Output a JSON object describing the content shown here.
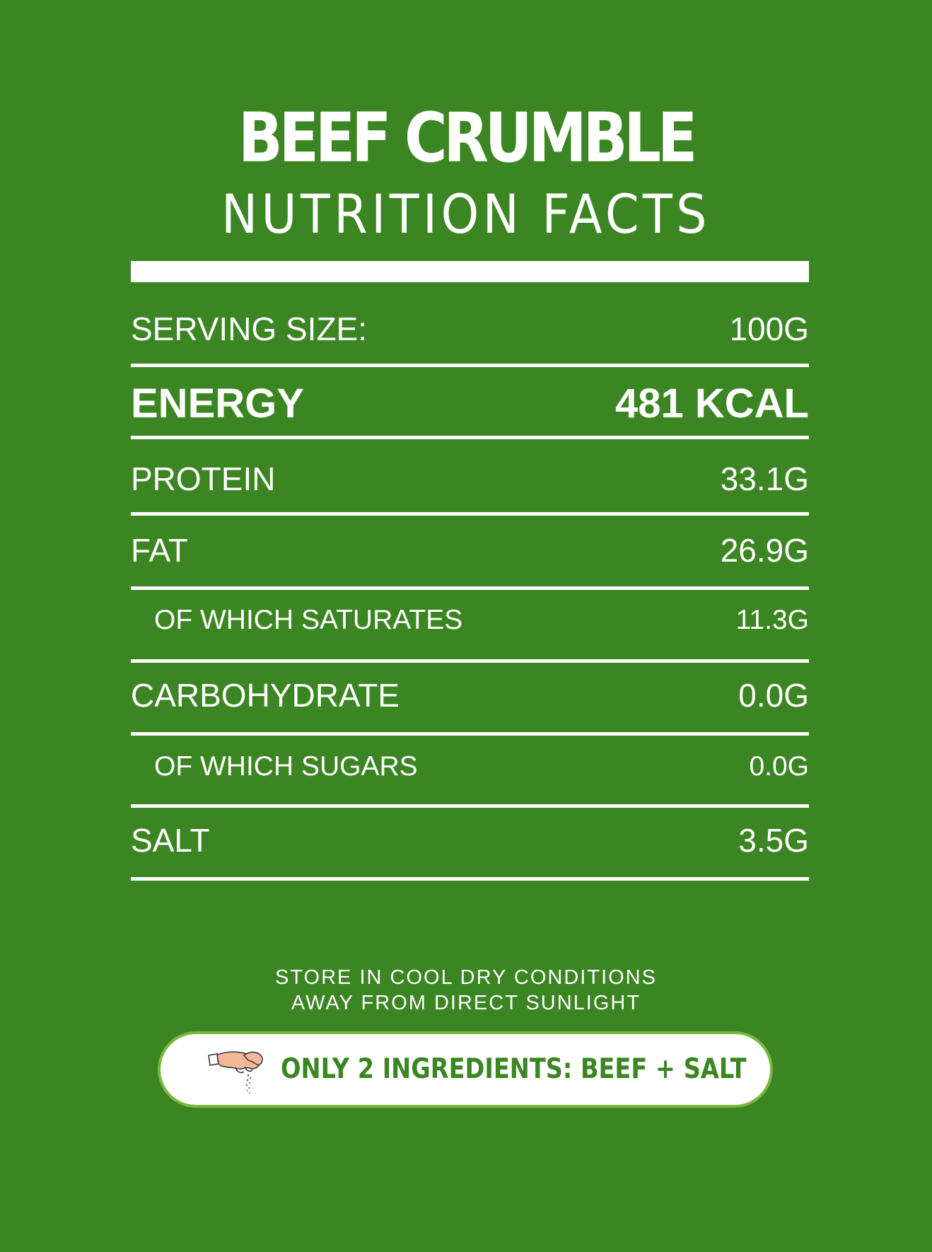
{
  "header": {
    "title": "BEEF CRUMBLE",
    "subtitle": "NUTRITION FACTS"
  },
  "nutrition": {
    "serving": {
      "label": "SERVING SIZE:",
      "value": "100G"
    },
    "energy": {
      "label": "ENERGY",
      "value": "481 KCAL"
    },
    "protein": {
      "label": "PROTEIN",
      "value": "33.1G"
    },
    "fat": {
      "label": "FAT",
      "value": "26.9G"
    },
    "saturates": {
      "label": "OF WHICH SATURATES",
      "value": "11.3G"
    },
    "carbohydrate": {
      "label": "CARBOHYDRATE",
      "value": "0.0G"
    },
    "sugars": {
      "label": "OF WHICH SUGARS",
      "value": "0.0G"
    },
    "salt": {
      "label": "SALT",
      "value": "3.5G"
    }
  },
  "storage": {
    "line1": "STORE IN COOL DRY CONDITIONS",
    "line2": "AWAY FROM DIRECT SUNLIGHT"
  },
  "banner": {
    "text": "ONLY 2 INGREDIENTS: BEEF + SALT",
    "icon": "pinch-of-salt-hand-icon"
  },
  "colors": {
    "background": "#3b8522",
    "foreground": "#ffffff",
    "banner_border": "#7ab83d"
  }
}
